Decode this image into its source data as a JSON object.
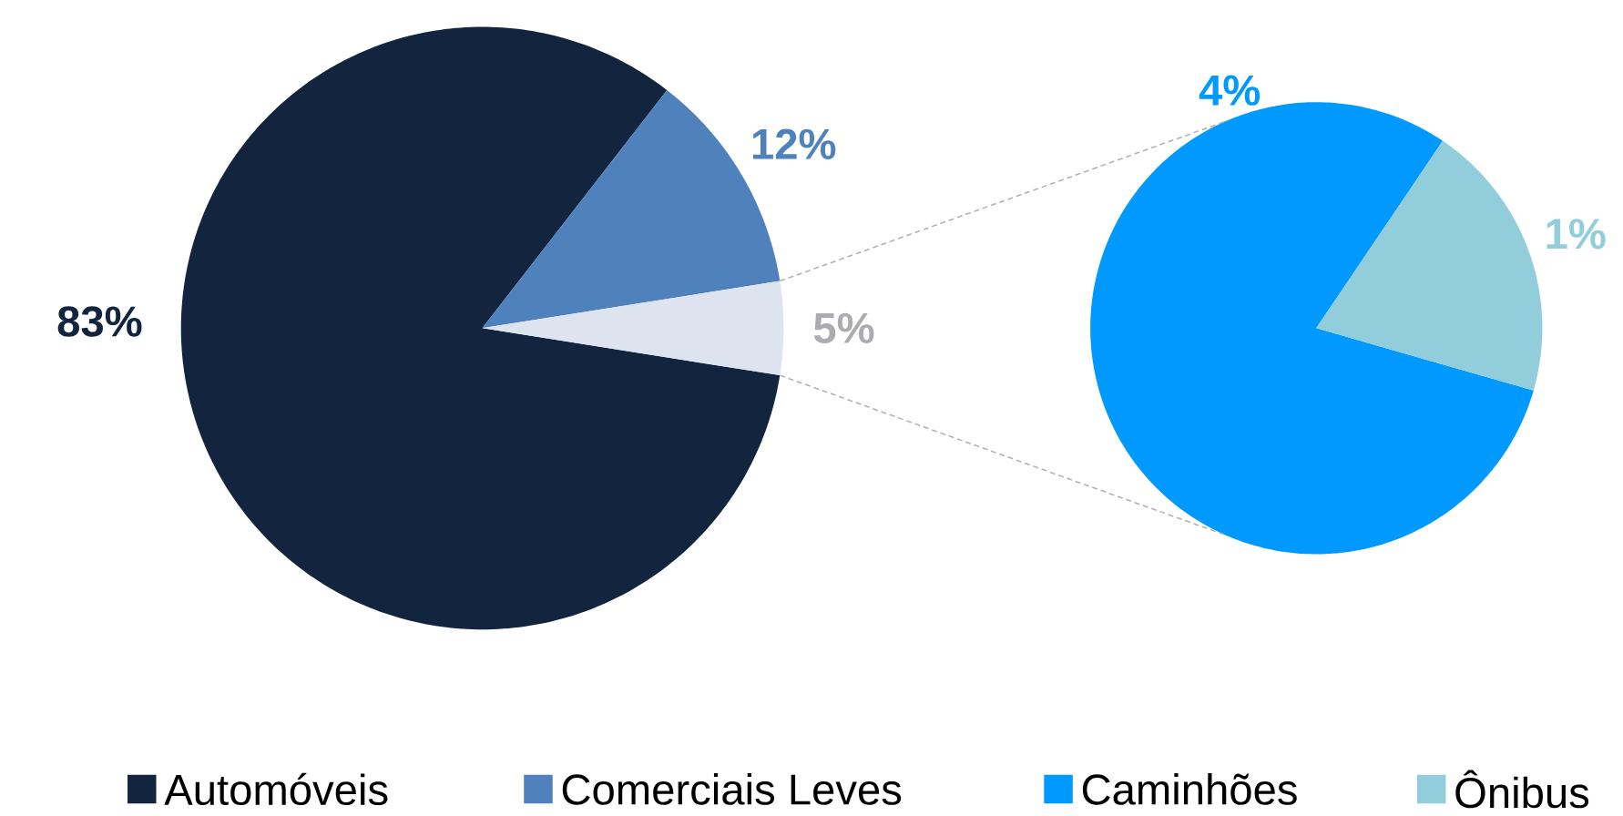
{
  "chart_data": [
    {
      "type": "pie",
      "categories": [
        "Automóveis",
        "Comerciais Leves",
        null
      ],
      "values": [
        83,
        12,
        5
      ],
      "colors": [
        "#13243f",
        "#4f81bd",
        "#dde3ef"
      ],
      "value_labels": [
        "83%",
        "12%",
        "5%"
      ],
      "legend": "bottom"
    },
    {
      "type": "pie",
      "categories": [
        "Caminhões",
        "Ônibus"
      ],
      "values": [
        4,
        1
      ],
      "colors": [
        "#0099ff",
        "#92cddc"
      ],
      "value_labels": [
        "4%",
        "1%"
      ],
      "legend": "bottom"
    }
  ]
}
